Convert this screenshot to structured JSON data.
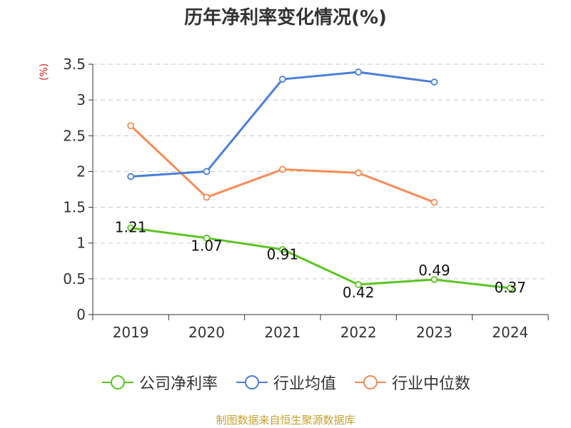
{
  "chart_data": {
    "type": "line",
    "title": "历年净利率变化情况(%)",
    "ylabel": "(%)",
    "xlabel": "",
    "categories": [
      "2019",
      "2020",
      "2021",
      "2022",
      "2023",
      "2024"
    ],
    "ylim": [
      0,
      3.5
    ],
    "yticks": [
      "0",
      "0.5",
      "1",
      "1.5",
      "2",
      "2.5",
      "3",
      "3.5"
    ],
    "grid": true,
    "legend_position": "bottom",
    "series": [
      {
        "name": "公司净利率",
        "color": "#5cc422",
        "values": [
          1.21,
          1.07,
          0.91,
          0.42,
          0.49,
          0.37
        ],
        "labels": [
          "1.21",
          "1.07",
          "0.91",
          "0.42",
          "0.49",
          "0.37"
        ]
      },
      {
        "name": "行业均值",
        "color": "#4a7fdb",
        "values": [
          1.93,
          2.0,
          3.29,
          3.39,
          3.25,
          null
        ]
      },
      {
        "name": "行业中位数",
        "color": "#f58c55",
        "values": [
          2.64,
          1.64,
          2.03,
          1.98,
          1.57,
          null
        ]
      }
    ]
  },
  "footer": "制图数据来自恒生聚源数据库"
}
